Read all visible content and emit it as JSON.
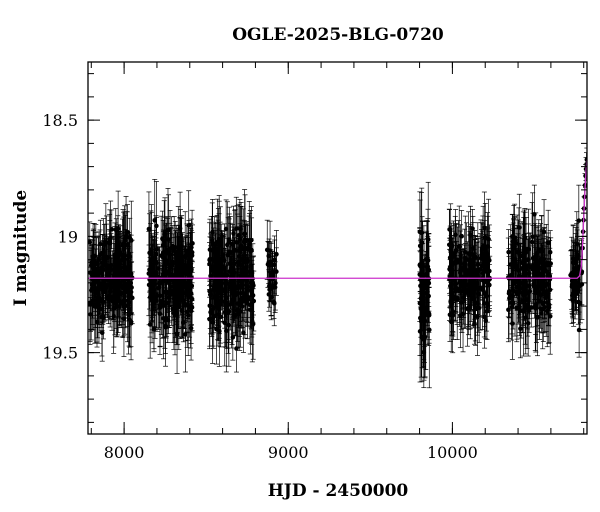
{
  "chart_data": {
    "type": "scatter",
    "title": "OGLE-2025-BLG-0720",
    "xlabel": "HJD - 2450000",
    "ylabel": "I magnitude",
    "xlim": [
      7780,
      10820
    ],
    "ylim": [
      19.85,
      18.25
    ],
    "y_axis_inverted": true,
    "x_ticks": [
      {
        "value": 8000,
        "label": "8000"
      },
      {
        "value": 9000,
        "label": "9000"
      },
      {
        "value": 10000,
        "label": "10000"
      }
    ],
    "y_ticks": [
      {
        "value": 18.5,
        "label": "18.5"
      },
      {
        "value": 19.0,
        "label": "19"
      },
      {
        "value": 19.5,
        "label": "19.5"
      }
    ],
    "x_minor_step": 200,
    "y_minor_step": 0.1,
    "grid": false,
    "seasons": [
      {
        "x_start": 7790,
        "x_end": 8050,
        "mean_mag": 19.18,
        "scatter": 0.17,
        "typical_error": 0.12,
        "n_points": 240
      },
      {
        "x_start": 8150,
        "x_end": 8420,
        "mean_mag": 19.18,
        "scatter": 0.18,
        "typical_error": 0.13,
        "n_points": 240
      },
      {
        "x_start": 8520,
        "x_end": 8790,
        "mean_mag": 19.19,
        "scatter": 0.18,
        "typical_error": 0.13,
        "n_points": 240
      },
      {
        "x_start": 8870,
        "x_end": 8930,
        "mean_mag": 19.18,
        "scatter": 0.13,
        "typical_error": 0.09,
        "n_points": 30
      },
      {
        "x_start": 9800,
        "x_end": 9860,
        "mean_mag": 19.22,
        "scatter": 0.22,
        "typical_error": 0.17,
        "n_points": 60
      },
      {
        "x_start": 9980,
        "x_end": 10230,
        "mean_mag": 19.18,
        "scatter": 0.16,
        "typical_error": 0.12,
        "n_points": 200
      },
      {
        "x_start": 10340,
        "x_end": 10600,
        "mean_mag": 19.19,
        "scatter": 0.17,
        "typical_error": 0.13,
        "n_points": 200
      },
      {
        "x_start": 10720,
        "x_end": 10790,
        "mean_mag": 19.15,
        "scatter": 0.15,
        "typical_error": 0.11,
        "n_points": 50
      }
    ],
    "rise_points": [
      {
        "x": 10793,
        "y": 19.05
      },
      {
        "x": 10796,
        "y": 18.98
      },
      {
        "x": 10799,
        "y": 18.93
      },
      {
        "x": 10802,
        "y": 18.88
      },
      {
        "x": 10805,
        "y": 18.83
      },
      {
        "x": 10808,
        "y": 18.78
      },
      {
        "x": 10811,
        "y": 18.74
      },
      {
        "x": 10814,
        "y": 18.71
      },
      {
        "x": 10817,
        "y": 18.69
      },
      {
        "x": 10819,
        "y": 18.67
      }
    ],
    "model": {
      "name": "model",
      "color": "#cc33cc",
      "baseline_mag": 19.18,
      "points": [
        {
          "x": 7780,
          "y": 19.18
        },
        {
          "x": 10760,
          "y": 19.18
        },
        {
          "x": 10775,
          "y": 19.17
        },
        {
          "x": 10785,
          "y": 19.13
        },
        {
          "x": 10790,
          "y": 19.08
        },
        {
          "x": 10795,
          "y": 19.0
        },
        {
          "x": 10800,
          "y": 18.92
        },
        {
          "x": 10805,
          "y": 18.84
        },
        {
          "x": 10810,
          "y": 18.77
        },
        {
          "x": 10815,
          "y": 18.71
        },
        {
          "x": 10820,
          "y": 18.67
        }
      ]
    },
    "colors": {
      "points": "#000000",
      "model": "#cc33cc",
      "frame": "#000000"
    }
  }
}
